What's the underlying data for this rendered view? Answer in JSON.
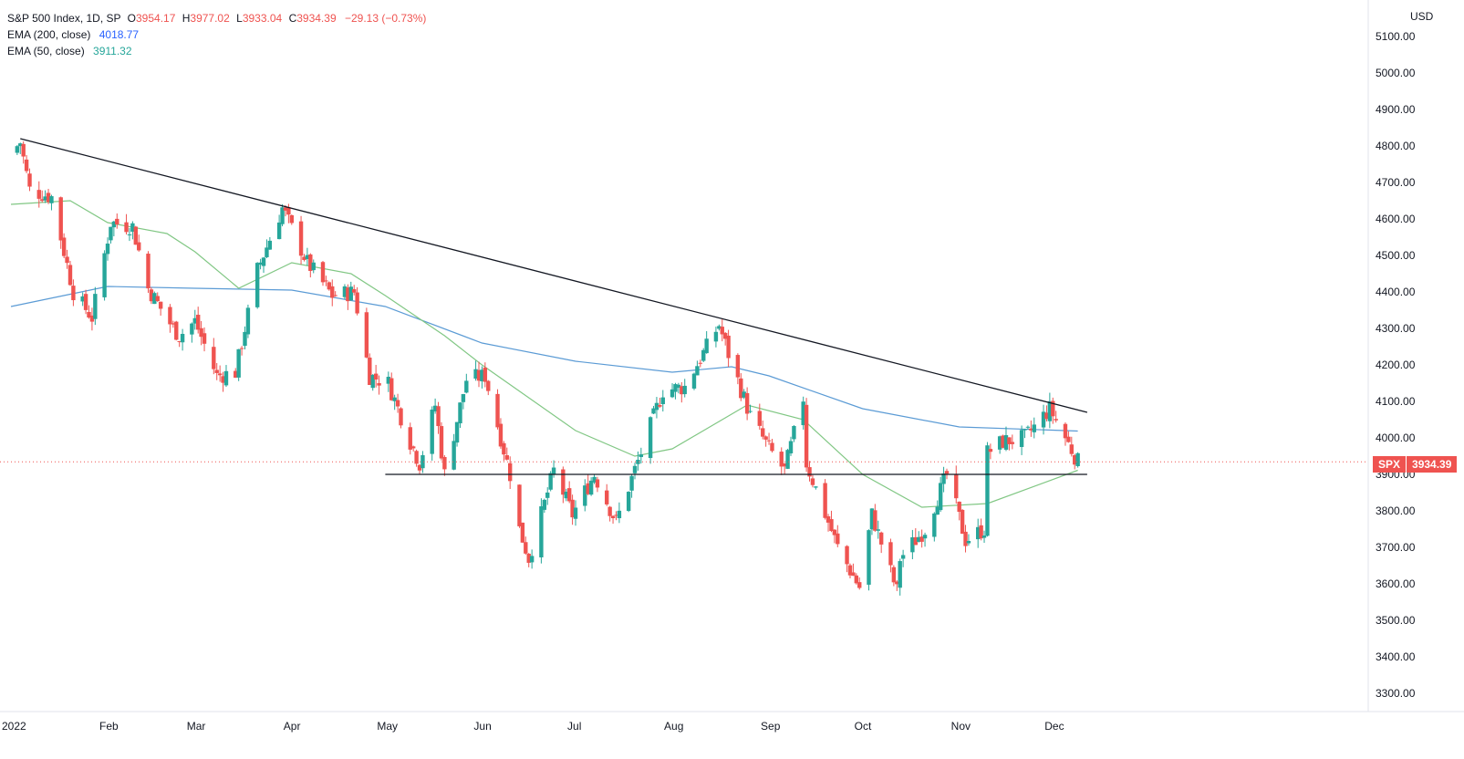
{
  "legend": {
    "title": "S&P 500 Index, 1D, SP",
    "ohlc": [
      {
        "key": "O",
        "value": "3954.17"
      },
      {
        "key": "H",
        "value": "3977.02"
      },
      {
        "key": "L",
        "value": "3933.04"
      },
      {
        "key": "C",
        "value": "3934.39"
      }
    ],
    "change": "−29.13 (−0.73%)",
    "ema200_label": "EMA (200, close)",
    "ema200_value": "4018.77",
    "ema50_label": "EMA (50, close)",
    "ema50_value": "3911.32"
  },
  "currency": "USD",
  "price_tag": {
    "symbol": "SPX",
    "value": "3934.39"
  },
  "colors": {
    "up": "#26a69a",
    "down": "#ef5350",
    "ema200": "#5b9bd5",
    "ema50": "#81c784",
    "trendline": "#131722",
    "last_price_line": "#ef5350"
  },
  "chart_data": {
    "type": "candlestick",
    "y_ticks": [
      3300,
      3400,
      3500,
      3600,
      3700,
      3800,
      3900,
      4000,
      4100,
      4200,
      4300,
      4400,
      4500,
      4600,
      4700,
      4800,
      4900,
      5000,
      5100
    ],
    "y_tick_labels": [
      "3300.00",
      "3400.00",
      "3500.00",
      "3600.00",
      "3700.00",
      "3800.00",
      "3900.00",
      "4000.00",
      "4100.00",
      "4200.00",
      "4300.00",
      "4400.00",
      "4500.00",
      "4600.00",
      "4700.00",
      "4800.00",
      "4900.00",
      "5000.00",
      "5100.00"
    ],
    "x_ticks": [
      {
        "label": "2022",
        "date": "2022-01-01"
      },
      {
        "label": "Feb",
        "date": "2022-02-01"
      },
      {
        "label": "Mar",
        "date": "2022-03-01"
      },
      {
        "label": "Apr",
        "date": "2022-04-01"
      },
      {
        "label": "May",
        "date": "2022-05-01"
      },
      {
        "label": "Jun",
        "date": "2022-06-01"
      },
      {
        "label": "Jul",
        "date": "2022-07-01"
      },
      {
        "label": "Aug",
        "date": "2022-08-01"
      },
      {
        "label": "Sep",
        "date": "2022-09-01"
      },
      {
        "label": "Oct",
        "date": "2022-10-01"
      },
      {
        "label": "Nov",
        "date": "2022-11-01"
      },
      {
        "label": "Dec",
        "date": "2022-12-01"
      }
    ],
    "ohlc_anchors": [
      {
        "date": "2022-01-01",
        "close": 4780
      },
      {
        "date": "2022-01-04",
        "close": 4810
      },
      {
        "date": "2022-01-07",
        "close": 4680
      },
      {
        "date": "2022-01-14",
        "close": 4660
      },
      {
        "date": "2022-01-21",
        "close": 4400
      },
      {
        "date": "2022-01-27",
        "close": 4330
      },
      {
        "date": "2022-02-02",
        "close": 4590
      },
      {
        "date": "2022-02-09",
        "close": 4580
      },
      {
        "date": "2022-02-14",
        "close": 4410
      },
      {
        "date": "2022-02-22",
        "close": 4300
      },
      {
        "date": "2022-02-24",
        "close": 4280
      },
      {
        "date": "2022-03-01",
        "close": 4320
      },
      {
        "date": "2022-03-08",
        "close": 4170
      },
      {
        "date": "2022-03-14",
        "close": 4180
      },
      {
        "date": "2022-03-21",
        "close": 4460
      },
      {
        "date": "2022-03-29",
        "close": 4630
      },
      {
        "date": "2022-04-06",
        "close": 4480
      },
      {
        "date": "2022-04-14",
        "close": 4390
      },
      {
        "date": "2022-04-21",
        "close": 4400
      },
      {
        "date": "2022-04-26",
        "close": 4170
      },
      {
        "date": "2022-05-02",
        "close": 4150
      },
      {
        "date": "2022-05-09",
        "close": 3990
      },
      {
        "date": "2022-05-12",
        "close": 3930
      },
      {
        "date": "2022-05-17",
        "close": 4090
      },
      {
        "date": "2022-05-20",
        "close": 3900
      },
      {
        "date": "2022-05-27",
        "close": 4160
      },
      {
        "date": "2022-06-02",
        "close": 4170
      },
      {
        "date": "2022-06-10",
        "close": 3900
      },
      {
        "date": "2022-06-13",
        "close": 3750
      },
      {
        "date": "2022-06-16",
        "close": 3670
      },
      {
        "date": "2022-06-24",
        "close": 3910
      },
      {
        "date": "2022-06-30",
        "close": 3790
      },
      {
        "date": "2022-07-07",
        "close": 3900
      },
      {
        "date": "2022-07-14",
        "close": 3770
      },
      {
        "date": "2022-07-22",
        "close": 3960
      },
      {
        "date": "2022-07-29",
        "close": 4130
      },
      {
        "date": "2022-08-05",
        "close": 4140
      },
      {
        "date": "2022-08-16",
        "close": 4310
      },
      {
        "date": "2022-08-19",
        "close": 4230
      },
      {
        "date": "2022-08-26",
        "close": 4060
      },
      {
        "date": "2022-09-01",
        "close": 3970
      },
      {
        "date": "2022-09-06",
        "close": 3910
      },
      {
        "date": "2022-09-12",
        "close": 4110
      },
      {
        "date": "2022-09-13",
        "close": 3930
      },
      {
        "date": "2022-09-23",
        "close": 3700
      },
      {
        "date": "2022-09-30",
        "close": 3590
      },
      {
        "date": "2022-10-04",
        "close": 3790
      },
      {
        "date": "2022-10-12",
        "close": 3580
      },
      {
        "date": "2022-10-13",
        "close": 3670
      },
      {
        "date": "2022-10-21",
        "close": 3750
      },
      {
        "date": "2022-10-28",
        "close": 3900
      },
      {
        "date": "2022-11-03",
        "close": 3720
      },
      {
        "date": "2022-11-09",
        "close": 3750
      },
      {
        "date": "2022-11-10",
        "close": 3960
      },
      {
        "date": "2022-11-15",
        "close": 3990
      },
      {
        "date": "2022-11-22",
        "close": 4000
      },
      {
        "date": "2022-11-30",
        "close": 4080
      },
      {
        "date": "2022-12-05",
        "close": 4000
      },
      {
        "date": "2022-12-09",
        "close": 3934.39
      }
    ],
    "ema200": [
      {
        "date": "2022-01-01",
        "value": 4360
      },
      {
        "date": "2022-02-01",
        "value": 4415
      },
      {
        "date": "2022-03-01",
        "value": 4410
      },
      {
        "date": "2022-04-01",
        "value": 4405
      },
      {
        "date": "2022-05-01",
        "value": 4360
      },
      {
        "date": "2022-06-01",
        "value": 4260
      },
      {
        "date": "2022-07-01",
        "value": 4210
      },
      {
        "date": "2022-08-01",
        "value": 4180
      },
      {
        "date": "2022-08-20",
        "value": 4195
      },
      {
        "date": "2022-09-01",
        "value": 4170
      },
      {
        "date": "2022-10-01",
        "value": 4080
      },
      {
        "date": "2022-11-01",
        "value": 4030
      },
      {
        "date": "2022-12-09",
        "value": 4018.77
      }
    ],
    "ema50": [
      {
        "date": "2022-01-01",
        "value": 4640
      },
      {
        "date": "2022-01-20",
        "value": 4650
      },
      {
        "date": "2022-02-01",
        "value": 4590
      },
      {
        "date": "2022-02-20",
        "value": 4560
      },
      {
        "date": "2022-03-01",
        "value": 4510
      },
      {
        "date": "2022-03-15",
        "value": 4410
      },
      {
        "date": "2022-04-01",
        "value": 4480
      },
      {
        "date": "2022-04-20",
        "value": 4450
      },
      {
        "date": "2022-05-01",
        "value": 4390
      },
      {
        "date": "2022-05-20",
        "value": 4280
      },
      {
        "date": "2022-06-01",
        "value": 4200
      },
      {
        "date": "2022-07-01",
        "value": 4020
      },
      {
        "date": "2022-07-20",
        "value": 3950
      },
      {
        "date": "2022-08-01",
        "value": 3970
      },
      {
        "date": "2022-08-25",
        "value": 4090
      },
      {
        "date": "2022-09-12",
        "value": 4050
      },
      {
        "date": "2022-10-01",
        "value": 3900
      },
      {
        "date": "2022-10-20",
        "value": 3810
      },
      {
        "date": "2022-11-10",
        "value": 3820
      },
      {
        "date": "2022-12-09",
        "value": 3911.32
      }
    ],
    "trendline": {
      "start": {
        "date": "2022-01-04",
        "value": 4820
      },
      "end": {
        "date": "2022-12-12",
        "value": 4070
      }
    },
    "support_line": {
      "start": {
        "date": "2022-05-01",
        "value": 3900
      },
      "end": {
        "date": "2022-12-12",
        "value": 3900
      }
    },
    "last_price": 3934.39
  }
}
